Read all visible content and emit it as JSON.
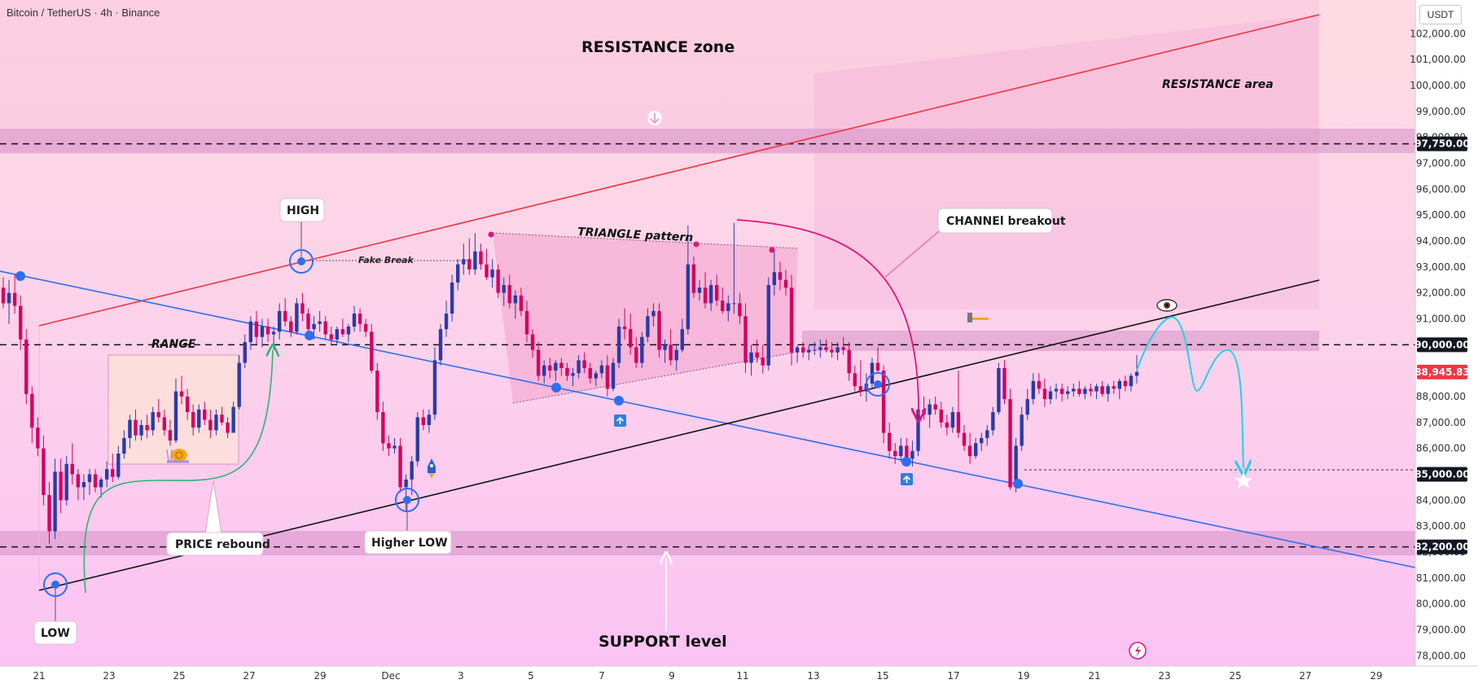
{
  "header": {
    "title": "Bitcoin / TetherUS · 4h · Binance",
    "currency": "USDT"
  },
  "chart_data": {
    "type": "candlestick",
    "symbol": "Bitcoin / TetherUS",
    "timeframe": "4h",
    "exchange": "Binance",
    "y_axis": {
      "ticks": [
        78000,
        79000,
        80000,
        81000,
        82000,
        83000,
        84000,
        85000,
        86000,
        87000,
        88000,
        89000,
        90000,
        91000,
        92000,
        93000,
        94000,
        95000,
        96000,
        97000,
        98000,
        99000,
        100000,
        101000,
        102000
      ],
      "tick_labels": [
        "78,000.00",
        "79,000.00",
        "80,000.00",
        "81,000.00",
        "82,000.00",
        "83,000.00",
        "84,000.00",
        "85,000.00",
        "86,000.00",
        "87,000.00",
        "88,000.00",
        "89,000.00",
        "90,000.00",
        "91,000.00",
        "92,000.00",
        "93,000.00",
        "94,000.00",
        "95,000.00",
        "96,000.00",
        "97,000.00",
        "98,000.00",
        "99,000.00",
        "100,000.00",
        "101,000.00",
        "102,000.00"
      ],
      "range": [
        77600,
        103300
      ],
      "highlighted": [
        {
          "value": 97750,
          "label": "97,750.00",
          "color": "#131722"
        },
        {
          "value": 90000,
          "label": "90,000.00",
          "color": "#131722"
        },
        {
          "value": 88945.83,
          "label": "88,945.83",
          "color": "#f23645"
        },
        {
          "value": 85000,
          "label": "85,000.00",
          "color": "#131722"
        },
        {
          "value": 82200,
          "label": "82,200.00",
          "color": "#131722"
        }
      ]
    },
    "x_axis": {
      "ticks": [
        "21",
        "23",
        "25",
        "27",
        "29",
        "Dec",
        "3",
        "5",
        "7",
        "9",
        "11",
        "13",
        "15",
        "17",
        "19",
        "21",
        "23",
        "25",
        "27",
        "29"
      ]
    },
    "candles": [
      [
        92200,
        92600,
        91400,
        91600
      ],
      [
        91600,
        92500,
        90800,
        92000
      ],
      [
        92000,
        92700,
        91200,
        91500
      ],
      [
        91500,
        91900,
        89800,
        90200
      ],
      [
        90200,
        90600,
        87700,
        88100
      ],
      [
        88100,
        88400,
        86200,
        86800
      ],
      [
        86800,
        87200,
        85700,
        86000
      ],
      [
        86000,
        86500,
        83800,
        84200
      ],
      [
        84200,
        84700,
        82300,
        82800
      ],
      [
        82800,
        85600,
        82500,
        85100
      ],
      [
        85100,
        85600,
        83500,
        84000
      ],
      [
        84000,
        85700,
        83800,
        85400
      ],
      [
        85400,
        86200,
        84600,
        85000
      ],
      [
        85000,
        85200,
        84000,
        84500
      ],
      [
        84500,
        85000,
        84000,
        84700
      ],
      [
        84700,
        85200,
        84200,
        85000
      ],
      [
        85000,
        85200,
        84300,
        84500
      ],
      [
        84500,
        84900,
        84100,
        84800
      ],
      [
        84800,
        85500,
        84500,
        85200
      ],
      [
        85200,
        85800,
        84700,
        84900
      ],
      [
        84900,
        86100,
        84800,
        85800
      ],
      [
        85800,
        86700,
        85600,
        86400
      ],
      [
        86400,
        87300,
        86000,
        87100
      ],
      [
        87100,
        87500,
        86300,
        86500
      ],
      [
        86500,
        87100,
        86300,
        86900
      ],
      [
        86900,
        87300,
        86400,
        86700
      ],
      [
        86700,
        87600,
        86500,
        87400
      ],
      [
        87400,
        87900,
        87000,
        87200
      ],
      [
        87200,
        87500,
        86500,
        86700
      ],
      [
        86700,
        87100,
        86100,
        86300
      ],
      [
        86300,
        88700,
        86200,
        88200
      ],
      [
        88200,
        88800,
        87700,
        88000
      ],
      [
        88000,
        88300,
        87100,
        87400
      ],
      [
        87400,
        87700,
        86500,
        86800
      ],
      [
        86800,
        87700,
        86600,
        87500
      ],
      [
        87500,
        87800,
        86900,
        87100
      ],
      [
        87100,
        87500,
        86400,
        86700
      ],
      [
        86700,
        87500,
        86500,
        87300
      ],
      [
        87300,
        87600,
        86900,
        87000
      ],
      [
        87000,
        87200,
        86400,
        86600
      ],
      [
        86600,
        87800,
        86600,
        87600
      ],
      [
        87600,
        89600,
        87500,
        89300
      ],
      [
        89300,
        90400,
        89100,
        90100
      ],
      [
        90100,
        91100,
        89800,
        90900
      ],
      [
        90900,
        91300,
        90000,
        90300
      ],
      [
        90300,
        91000,
        89900,
        90700
      ],
      [
        90700,
        91000,
        90100,
        90400
      ],
      [
        90400,
        90700,
        89800,
        90500
      ],
      [
        90500,
        91600,
        90200,
        91300
      ],
      [
        91300,
        91800,
        90700,
        90900
      ],
      [
        90900,
        91100,
        90300,
        90500
      ],
      [
        90500,
        91800,
        90400,
        91600
      ],
      [
        91600,
        92000,
        90900,
        91200
      ],
      [
        91200,
        91400,
        90300,
        90600
      ],
      [
        90600,
        91100,
        90200,
        90800
      ],
      [
        90800,
        91300,
        90500,
        90900
      ],
      [
        90900,
        91100,
        90200,
        90400
      ],
      [
        90400,
        90700,
        90000,
        90200
      ],
      [
        90200,
        90700,
        90000,
        90600
      ],
      [
        90600,
        91000,
        90300,
        90400
      ],
      [
        90400,
        90800,
        90100,
        90700
      ],
      [
        90700,
        91500,
        90500,
        91200
      ],
      [
        91200,
        91400,
        90500,
        90800
      ],
      [
        90800,
        91000,
        90300,
        90500
      ],
      [
        90500,
        90800,
        88900,
        89000
      ],
      [
        89000,
        89300,
        87100,
        87400
      ],
      [
        87400,
        87800,
        85900,
        86200
      ],
      [
        86200,
        86500,
        85700,
        86000
      ],
      [
        86000,
        86400,
        85800,
        86100
      ],
      [
        86100,
        86400,
        84300,
        84500
      ],
      [
        84500,
        85000,
        83600,
        84800
      ],
      [
        84800,
        85700,
        84200,
        85500
      ],
      [
        85500,
        87400,
        85300,
        87200
      ],
      [
        87200,
        87500,
        86700,
        86900
      ],
      [
        86900,
        87500,
        86600,
        87300
      ],
      [
        87300,
        89900,
        87100,
        89400
      ],
      [
        89400,
        90800,
        89200,
        90600
      ],
      [
        90600,
        91700,
        90300,
        91200
      ],
      [
        91200,
        92700,
        90900,
        92400
      ],
      [
        92400,
        93300,
        92100,
        93100
      ],
      [
        93100,
        93900,
        92700,
        93300
      ],
      [
        93300,
        94100,
        92700,
        92900
      ],
      [
        92900,
        94300,
        92700,
        93600
      ],
      [
        93600,
        93900,
        92900,
        93100
      ],
      [
        93100,
        93700,
        92500,
        92600
      ],
      [
        92600,
        93300,
        92200,
        92900
      ],
      [
        92900,
        93100,
        91800,
        92000
      ],
      [
        92000,
        92600,
        91500,
        92300
      ],
      [
        92300,
        92700,
        91400,
        91600
      ],
      [
        91600,
        92100,
        91000,
        91900
      ],
      [
        91900,
        92200,
        91100,
        91300
      ],
      [
        91300,
        91700,
        90100,
        90400
      ],
      [
        90400,
        90600,
        89500,
        89800
      ],
      [
        89800,
        90100,
        88600,
        88800
      ],
      [
        88800,
        89400,
        88500,
        89200
      ],
      [
        89200,
        89500,
        88700,
        89000
      ],
      [
        89000,
        89400,
        88600,
        89300
      ],
      [
        89300,
        89500,
        88800,
        89100
      ],
      [
        89100,
        89300,
        88600,
        88800
      ],
      [
        88800,
        89100,
        88400,
        88900
      ],
      [
        88900,
        89600,
        88700,
        89400
      ],
      [
        89400,
        89700,
        88900,
        89100
      ],
      [
        89100,
        89300,
        88500,
        88700
      ],
      [
        88700,
        89000,
        88400,
        88900
      ],
      [
        88900,
        89400,
        88700,
        89200
      ],
      [
        89200,
        89600,
        88000,
        88300
      ],
      [
        88300,
        89500,
        88200,
        89300
      ],
      [
        89300,
        91000,
        89100,
        90700
      ],
      [
        90700,
        91400,
        90200,
        90600
      ],
      [
        90600,
        91200,
        89600,
        89900
      ],
      [
        89900,
        90300,
        89100,
        89300
      ],
      [
        89300,
        90500,
        89100,
        90300
      ],
      [
        90300,
        91400,
        90100,
        91100
      ],
      [
        91100,
        91600,
        90700,
        91300
      ],
      [
        91300,
        91600,
        89500,
        89800
      ],
      [
        89800,
        90200,
        89300,
        90000
      ],
      [
        90000,
        90600,
        89200,
        89400
      ],
      [
        89400,
        90000,
        89000,
        89800
      ],
      [
        89800,
        91000,
        89700,
        90600
      ],
      [
        90600,
        94600,
        90400,
        93100
      ],
      [
        93100,
        93400,
        91800,
        92000
      ],
      [
        92000,
        92500,
        91700,
        92200
      ],
      [
        92200,
        92800,
        91400,
        91600
      ],
      [
        91600,
        92500,
        91300,
        92300
      ],
      [
        92300,
        92700,
        91500,
        91700
      ],
      [
        91700,
        92200,
        91200,
        91300
      ],
      [
        91300,
        91900,
        90900,
        91600
      ],
      [
        91600,
        94700,
        91200,
        91600
      ],
      [
        91600,
        92000,
        90800,
        91100
      ],
      [
        91100,
        91600,
        88900,
        89300
      ],
      [
        89300,
        90000,
        88800,
        89700
      ],
      [
        89700,
        90200,
        89300,
        89500
      ],
      [
        89500,
        90000,
        88900,
        89200
      ],
      [
        89200,
        92600,
        89000,
        92300
      ],
      [
        92300,
        93600,
        91900,
        92800
      ],
      [
        92800,
        93200,
        92100,
        92500
      ],
      [
        92500,
        92900,
        91900,
        92200
      ],
      [
        92200,
        92700,
        89200,
        89700
      ],
      [
        89700,
        90000,
        89300,
        89900
      ],
      [
        89900,
        90100,
        89500,
        89700
      ],
      [
        89700,
        90000,
        89400,
        89800
      ],
      [
        89800,
        90100,
        89600,
        89800
      ],
      [
        89800,
        90200,
        89500,
        89900
      ],
      [
        89900,
        90200,
        89700,
        89800
      ],
      [
        89800,
        90100,
        89500,
        89700
      ],
      [
        89700,
        90100,
        89400,
        89900
      ],
      [
        89900,
        90300,
        89600,
        89800
      ],
      [
        89800,
        90100,
        88600,
        88900
      ],
      [
        88900,
        89200,
        88200,
        88400
      ],
      [
        88400,
        89400,
        88000,
        88200
      ],
      [
        88200,
        88900,
        87800,
        88500
      ],
      [
        88500,
        89500,
        88300,
        89300
      ],
      [
        89300,
        89900,
        88900,
        89000
      ],
      [
        89000,
        89200,
        86200,
        86600
      ],
      [
        86600,
        87000,
        85600,
        85900
      ],
      [
        85900,
        86200,
        85400,
        85700
      ],
      [
        85700,
        86400,
        85500,
        86100
      ],
      [
        86100,
        86400,
        85300,
        85600
      ],
      [
        85600,
        86300,
        85300,
        85900
      ],
      [
        85900,
        87600,
        85700,
        87500
      ],
      [
        87500,
        88000,
        87100,
        87300
      ],
      [
        87300,
        87900,
        86800,
        87700
      ],
      [
        87700,
        88000,
        87300,
        87500
      ],
      [
        87500,
        87800,
        86800,
        87000
      ],
      [
        87000,
        87300,
        86500,
        86800
      ],
      [
        86800,
        87600,
        86600,
        87400
      ],
      [
        87400,
        89000,
        86400,
        86600
      ],
      [
        86600,
        86900,
        85900,
        86100
      ],
      [
        86100,
        86600,
        85400,
        85700
      ],
      [
        85700,
        86400,
        85600,
        86200
      ],
      [
        86200,
        86600,
        85900,
        86400
      ],
      [
        86400,
        86900,
        86100,
        86700
      ],
      [
        86700,
        87600,
        86500,
        87400
      ],
      [
        87400,
        89300,
        87300,
        89100
      ],
      [
        89100,
        89400,
        87700,
        87900
      ],
      [
        87900,
        88300,
        84400,
        84500
      ],
      [
        84500,
        86400,
        84300,
        86100
      ],
      [
        86100,
        87600,
        85900,
        87300
      ],
      [
        87300,
        88300,
        87100,
        87900
      ],
      [
        87900,
        88900,
        87700,
        88600
      ],
      [
        88600,
        88900,
        88100,
        88300
      ],
      [
        88300,
        88700,
        87600,
        87900
      ],
      [
        87900,
        88400,
        87700,
        88200
      ],
      [
        88200,
        88500,
        87900,
        88300
      ],
      [
        88300,
        88500,
        87800,
        88100
      ],
      [
        88100,
        88400,
        87900,
        88200
      ],
      [
        88200,
        88500,
        88000,
        88300
      ],
      [
        88300,
        88600,
        88000,
        88100
      ],
      [
        88100,
        88400,
        87900,
        88300
      ],
      [
        88300,
        88500,
        88000,
        88200
      ],
      [
        88200,
        88500,
        87900,
        88400
      ],
      [
        88400,
        88600,
        88000,
        88100
      ],
      [
        88100,
        88500,
        87800,
        88400
      ],
      [
        88400,
        88600,
        88100,
        88300
      ],
      [
        88300,
        88700,
        87900,
        88600
      ],
      [
        88600,
        88800,
        88200,
        88400
      ],
      [
        88400,
        88900,
        88200,
        88800
      ],
      [
        88800,
        89600,
        88500,
        88945.83
      ]
    ],
    "annotations": {
      "zones": [
        "RESISTANCE zone",
        "RESISTANCE area",
        "RANGE",
        "TRIANGLE pattern",
        "SUPPORT level"
      ],
      "labels": [
        "HIGH",
        "LOW",
        "Higher LOW",
        "PRICE rebound",
        "CHANNEl breakout",
        "Fake Break"
      ],
      "dashed_levels": [
        97750,
        90000,
        85000,
        82200
      ],
      "projection_target": 85000
    },
    "grid": false,
    "legend": "none"
  }
}
